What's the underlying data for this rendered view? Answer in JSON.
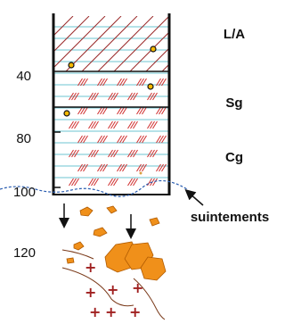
{
  "depth_labels": [
    "40",
    "80",
    "100",
    "120"
  ],
  "horizons": [
    "L/A",
    "Sg",
    "Cg"
  ],
  "annotation": "suintements"
}
